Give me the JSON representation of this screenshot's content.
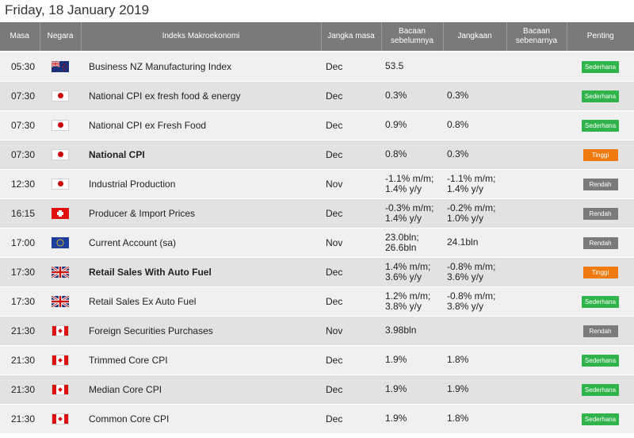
{
  "page": {
    "title": "Friday, 18 January 2019"
  },
  "headers": {
    "time": "Masa",
    "country": "Negara",
    "indicator": "Indeks Makroekonomi",
    "period": "Jangka masa",
    "previous": "Bacaan sebelumnya",
    "forecast": "Jangkaan",
    "actual": "Bacaan sebenarnya",
    "importance": "Penting"
  },
  "colors": {
    "sederhana": "#2fb34a",
    "tinggi": "#f07a10",
    "rendah": "#7a7a7a"
  },
  "rows": [
    {
      "time": "05:30",
      "flag": "nz-flag-icon",
      "indicator": "Business NZ Manufacturing Index",
      "bold": false,
      "period": "Dec",
      "previous": "53.5",
      "forecast": "",
      "actual": "",
      "importance": "Sederhana",
      "level": "sederhana"
    },
    {
      "time": "07:30",
      "flag": "jp-flag-icon",
      "indicator": "National CPI ex fresh food & energy",
      "bold": false,
      "period": "Dec",
      "previous": "0.3%",
      "forecast": "0.3%",
      "actual": "",
      "importance": "Sederhana",
      "level": "sederhana"
    },
    {
      "time": "07:30",
      "flag": "jp-flag-icon",
      "indicator": "National CPI ex Fresh Food",
      "bold": false,
      "period": "Dec",
      "previous": "0.9%",
      "forecast": "0.8%",
      "actual": "",
      "importance": "Sederhana",
      "level": "sederhana"
    },
    {
      "time": "07:30",
      "flag": "jp-flag-icon",
      "indicator": "National CPI",
      "bold": true,
      "period": "Dec",
      "previous": "0.8%",
      "forecast": "0.3%",
      "actual": "",
      "importance": "Tinggi",
      "level": "tinggi"
    },
    {
      "time": "12:30",
      "flag": "jp-flag-icon",
      "indicator": "Industrial Production",
      "bold": false,
      "period": "Nov",
      "previous": "-1.1% m/m;\n1.4% y/y",
      "forecast": "-1.1% m/m;\n1.4% y/y",
      "actual": "",
      "importance": "Rendah",
      "level": "rendah"
    },
    {
      "time": "16:15",
      "flag": "ch-flag-icon",
      "indicator": "Producer & Import Prices",
      "bold": false,
      "period": "Dec",
      "previous": "-0.3% m/m;\n1.4% y/y",
      "forecast": "-0.2% m/m;\n1.0% y/y",
      "actual": "",
      "importance": "Rendah",
      "level": "rendah"
    },
    {
      "time": "17:00",
      "flag": "eu-flag-icon",
      "indicator": "Current Account (sa)",
      "bold": false,
      "period": "Nov",
      "previous": "23.0bln;\n26.6bln",
      "forecast": "24.1bln",
      "actual": "",
      "importance": "Rendah",
      "level": "rendah"
    },
    {
      "time": "17:30",
      "flag": "uk-flag-icon",
      "indicator": "Retail Sales With Auto Fuel",
      "bold": true,
      "period": "Dec",
      "previous": "1.4% m/m;\n3.6% y/y",
      "forecast": "-0.8% m/m;\n3.6% y/y",
      "actual": "",
      "importance": "Tinggi",
      "level": "tinggi"
    },
    {
      "time": "17:30",
      "flag": "uk-flag-icon",
      "indicator": "Retail Sales Ex Auto Fuel",
      "bold": false,
      "period": "Dec",
      "previous": "1.2% m/m;\n3.8% y/y",
      "forecast": "-0.8% m/m;\n3.8% y/y",
      "actual": "",
      "importance": "Sederhana",
      "level": "sederhana"
    },
    {
      "time": "21:30",
      "flag": "ca-flag-icon",
      "indicator": "Foreign Securities Purchases",
      "bold": false,
      "period": "Nov",
      "previous": "3.98bln",
      "forecast": "",
      "actual": "",
      "importance": "Rendah",
      "level": "rendah"
    },
    {
      "time": "21:30",
      "flag": "ca-flag-icon",
      "indicator": "Trimmed Core CPI",
      "bold": false,
      "period": "Dec",
      "previous": "1.9%",
      "forecast": "1.8%",
      "actual": "",
      "importance": "Sederhana",
      "level": "sederhana"
    },
    {
      "time": "21:30",
      "flag": "ca-flag-icon",
      "indicator": "Median Core CPI",
      "bold": false,
      "period": "Dec",
      "previous": "1.9%",
      "forecast": "1.9%",
      "actual": "",
      "importance": "Sederhana",
      "level": "sederhana"
    },
    {
      "time": "21:30",
      "flag": "ca-flag-icon",
      "indicator": "Common Core CPI",
      "bold": false,
      "period": "Dec",
      "previous": "1.9%",
      "forecast": "1.8%",
      "actual": "",
      "importance": "Sederhana",
      "level": "sederhana"
    }
  ]
}
